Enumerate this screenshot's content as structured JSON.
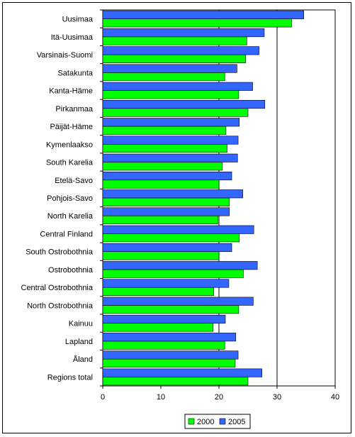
{
  "chart_data": {
    "type": "bar",
    "orientation": "horizontal",
    "categories": [
      "Uusimaa",
      "Itä-Uusimaa",
      "Varsinais-Suomi",
      "Satakunta",
      "Kanta-Häme",
      "Pirkanmaa",
      "Päijät-Häme",
      "Kymenlaakso",
      "South Karelia",
      "Etelä-Savo",
      "Pohjois-Savo",
      "North Karelia",
      "Central Finland",
      "South Ostrobothnia",
      "Ostrobothnia",
      "Central Ostrobothnia",
      "North Ostrobothnia",
      "Kainuu",
      "Lapland",
      "Åland",
      "Regions total"
    ],
    "series": [
      {
        "name": "2000",
        "color": "#00ff00",
        "values": [
          32.5,
          24.8,
          24.6,
          21.0,
          23.4,
          25.0,
          21.2,
          21.4,
          20.6,
          20.0,
          21.8,
          19.8,
          23.5,
          20.0,
          24.2,
          19.1,
          23.4,
          19.0,
          21.0,
          22.8,
          25.0
        ]
      },
      {
        "name": "2005",
        "color": "#3366ff",
        "values": [
          34.6,
          27.8,
          26.9,
          23.1,
          25.8,
          27.9,
          23.5,
          23.3,
          23.2,
          22.2,
          24.1,
          21.8,
          26.0,
          22.2,
          26.6,
          21.7,
          25.9,
          21.1,
          22.9,
          23.3,
          27.4
        ]
      }
    ],
    "xlim": [
      0,
      40
    ],
    "x_ticks": [
      "0",
      "10",
      "20",
      "30",
      "40"
    ],
    "gridlines_x": [
      20,
      30
    ],
    "legend_position": "bottom"
  }
}
